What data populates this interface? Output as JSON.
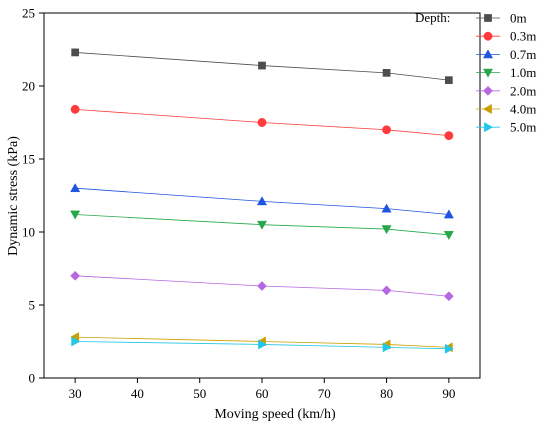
{
  "chart_data": {
    "type": "line",
    "xlabel": "Moving speed (km/h)",
    "ylabel": "Dynamic stress (kPa)",
    "xlim": [
      25,
      95
    ],
    "ylim": [
      0,
      25
    ],
    "xticks": [
      "30",
      "40",
      "50",
      "60",
      "70",
      "80",
      "90"
    ],
    "yticks": [
      "0",
      "5",
      "10",
      "15",
      "20",
      "25"
    ],
    "grid": false,
    "legend_title": "Depth:",
    "legend_position": "top-right",
    "x": [
      30,
      60,
      80,
      90
    ],
    "series": [
      {
        "name": "0m",
        "color": "#4d4d4d",
        "marker": "square",
        "values": [
          22.3,
          21.4,
          20.9,
          20.4
        ]
      },
      {
        "name": "0.3m",
        "color": "#ff3b3b",
        "marker": "circle",
        "values": [
          18.4,
          17.5,
          17.0,
          16.6
        ]
      },
      {
        "name": "0.7m",
        "color": "#1f55e0",
        "marker": "triangle-up",
        "values": [
          13.0,
          12.1,
          11.6,
          11.2
        ]
      },
      {
        "name": "1.0m",
        "color": "#27a84a",
        "marker": "triangle-down",
        "values": [
          11.2,
          10.5,
          10.2,
          9.8
        ]
      },
      {
        "name": "2.0m",
        "color": "#b768e0",
        "marker": "diamond",
        "values": [
          7.0,
          6.3,
          6.0,
          5.6
        ]
      },
      {
        "name": "4.0m",
        "color": "#c9a000",
        "marker": "triangle-left",
        "values": [
          2.8,
          2.5,
          2.3,
          2.1
        ]
      },
      {
        "name": "5.0m",
        "color": "#22c6e8",
        "marker": "triangle-right",
        "values": [
          2.5,
          2.3,
          2.1,
          2.0
        ]
      }
    ]
  }
}
